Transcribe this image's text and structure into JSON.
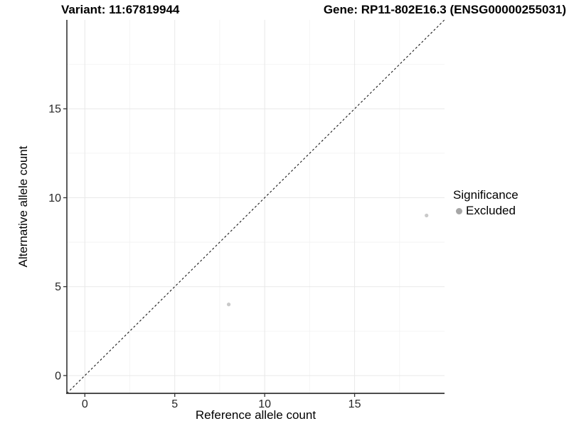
{
  "header": {
    "variant_title": "Variant: 11:67819944",
    "gene_title": "Gene: RP11-802E16.3 (ENSG00000255031)"
  },
  "chart_data": {
    "type": "scatter",
    "xlabel": "Reference allele count",
    "ylabel": "Alternative allele count",
    "xlim": [
      -1,
      20
    ],
    "ylim": [
      -1,
      20
    ],
    "x_ticks": [
      0,
      5,
      10,
      15
    ],
    "y_ticks": [
      0,
      5,
      10,
      15
    ],
    "x_minor_ticks": [
      2.5,
      7.5,
      12.5,
      17.5
    ],
    "y_minor_ticks": [
      2.5,
      7.5,
      12.5,
      17.5
    ],
    "grid": "major and minor, light gray on white",
    "identity_line": {
      "style": "dashed",
      "from": [
        -1,
        -1
      ],
      "to": [
        20,
        20
      ],
      "color": "#1a1a1a"
    },
    "series": [
      {
        "name": "Excluded",
        "marker": "circle",
        "color": "#c9c9c9",
        "size": 2.6,
        "points": [
          [
            8,
            4
          ],
          [
            19,
            9
          ]
        ]
      }
    ],
    "legend": {
      "position": "right",
      "title": "Significance",
      "entries": [
        {
          "label": "Excluded",
          "color": "#a6a6a6"
        }
      ]
    },
    "colors": {
      "axis_line": "#333333",
      "tick_mark": "#333333",
      "tick_label": "#262626",
      "grid_major": "#e8e8e8",
      "grid_minor": "#f4f4f4"
    }
  }
}
